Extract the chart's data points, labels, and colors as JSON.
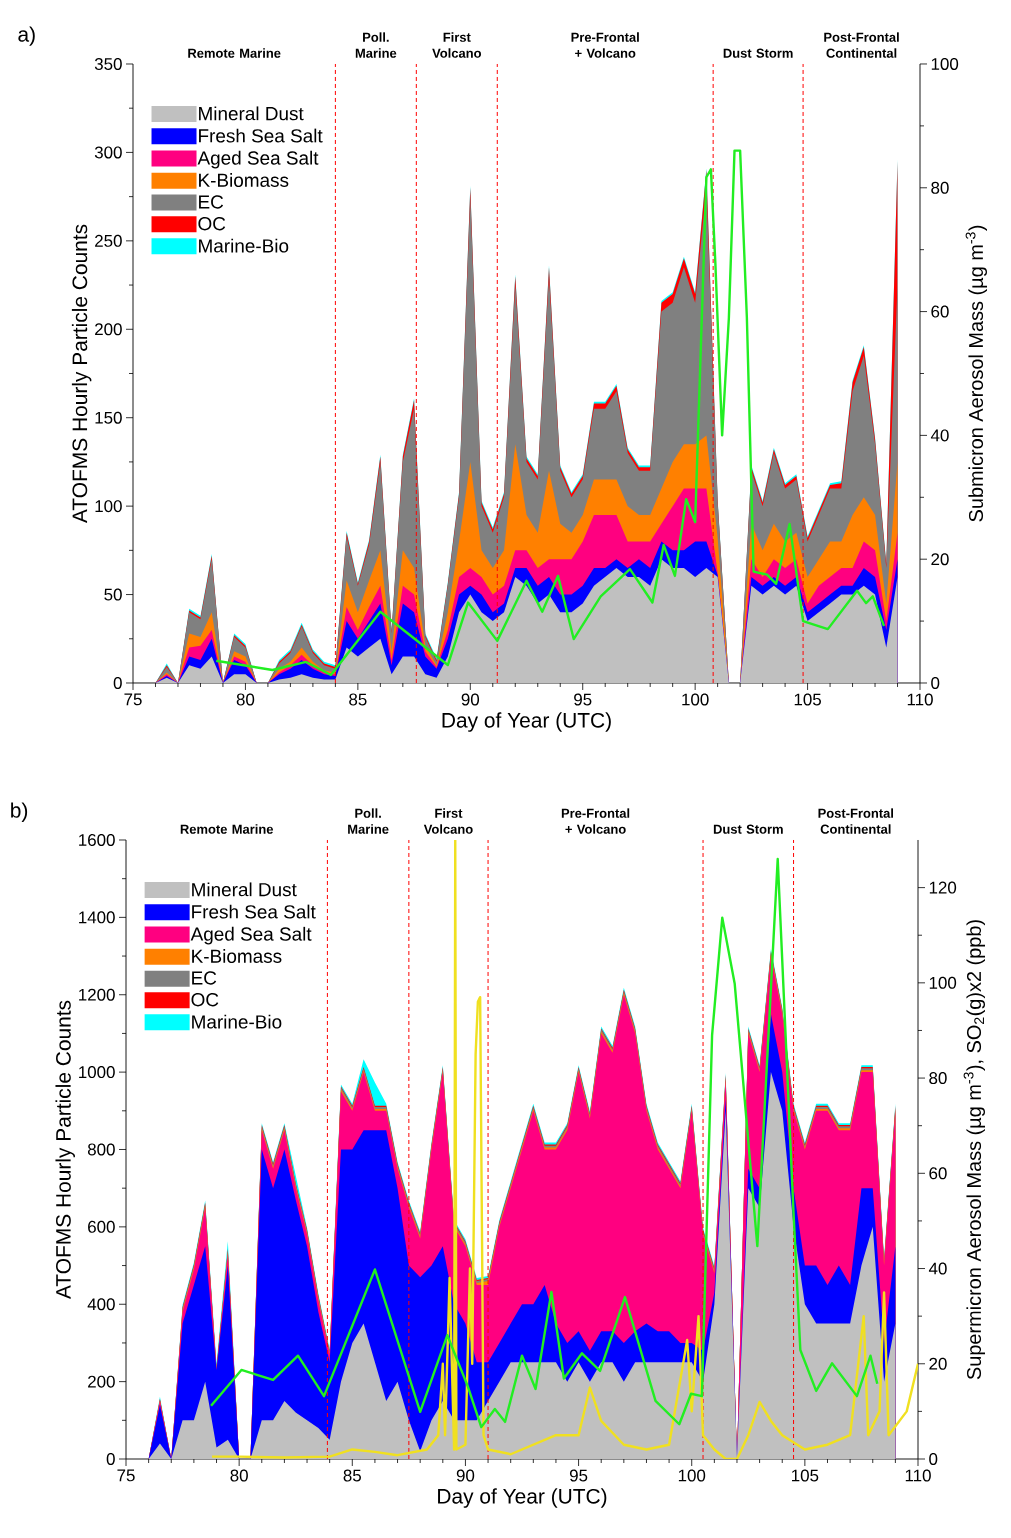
{
  "chart_data": [
    {
      "type": "area",
      "stacked": true,
      "legend": "top left",
      "xlabel": "Day of Year (UTC)",
      "ylabel": "ATOFMS Hourly Particle Counts",
      "y2label": "Submicron Aerosol Mass (µg m$^{-3}$)",
      "xlim": [
        75,
        110
      ],
      "xticks": [
        75,
        80,
        85,
        90,
        95,
        100,
        105,
        110
      ],
      "ylim": [
        0,
        350
      ],
      "yticks": [
        0,
        50,
        100,
        150,
        200,
        250,
        300,
        350
      ],
      "y2lim": [
        0,
        100
      ],
      "y2ticks": [
        0,
        20,
        40,
        60,
        80,
        100
      ],
      "annotations": [
        "a)",
        "Remote Marine",
        "Poll. Marine",
        "First Volcano",
        "Pre-Frontal + Volcano",
        "Dust Storm",
        "Post-Frontal Continental"
      ],
      "ref_lines": [
        {
          "axis": "x",
          "value": 84.0,
          "color": "#ff0000",
          "line_style": "dashed"
        },
        {
          "axis": "x",
          "value": 87.6,
          "color": "#ff0000",
          "line_style": "dashed"
        },
        {
          "axis": "x",
          "value": 91.2,
          "color": "#ff0000",
          "line_style": "dashed"
        },
        {
          "axis": "x",
          "value": 100.8,
          "color": "#ff0000",
          "line_style": "dashed"
        },
        {
          "axis": "x",
          "value": 104.8,
          "color": "#ff0000",
          "line_style": "dashed"
        }
      ],
      "x": [
        76,
        76.5,
        77,
        77.5,
        78,
        78.5,
        79,
        79.5,
        80,
        80.5,
        81,
        81.5,
        82,
        82.5,
        83,
        83.5,
        84,
        84.5,
        85,
        85.5,
        86,
        86.5,
        87,
        87.5,
        88,
        88.5,
        89,
        89.5,
        90,
        90.5,
        91,
        91.5,
        92,
        92.5,
        93,
        93.5,
        94,
        94.5,
        95,
        95.5,
        96,
        96.5,
        97,
        97.5,
        98,
        98.5,
        99,
        99.5,
        100,
        100.5,
        101,
        101.5,
        102,
        102.5,
        103,
        103.5,
        104,
        104.5,
        105,
        105.5,
        106,
        106.5,
        107,
        107.5,
        108,
        108.5,
        109
      ],
      "series": [
        {
          "name": "Mineral Dust",
          "color": "#c0c0c0",
          "values": [
            0,
            3,
            0,
            10,
            8,
            15,
            0,
            5,
            5,
            0,
            0,
            2,
            3,
            5,
            3,
            2,
            2,
            20,
            15,
            20,
            25,
            5,
            15,
            15,
            5,
            3,
            15,
            40,
            50,
            40,
            35,
            40,
            60,
            55,
            45,
            50,
            40,
            40,
            45,
            55,
            60,
            65,
            60,
            60,
            55,
            70,
            65,
            65,
            60,
            65,
            60,
            0,
            0,
            55,
            50,
            55,
            50,
            55,
            35,
            40,
            45,
            50,
            50,
            55,
            50,
            20,
            60
          ]
        },
        {
          "name": "Fresh Sea Salt",
          "color": "#0000ff",
          "values": [
            0,
            1,
            0,
            5,
            5,
            10,
            0,
            8,
            5,
            0,
            0,
            3,
            5,
            8,
            5,
            3,
            2,
            15,
            10,
            15,
            20,
            5,
            30,
            25,
            10,
            5,
            10,
            10,
            5,
            10,
            5,
            5,
            5,
            10,
            10,
            10,
            10,
            10,
            10,
            10,
            5,
            5,
            5,
            10,
            10,
            10,
            10,
            10,
            20,
            15,
            1,
            0,
            0,
            5,
            5,
            5,
            5,
            5,
            5,
            5,
            5,
            5,
            5,
            10,
            10,
            10,
            10
          ]
        },
        {
          "name": "Aged Sea Salt",
          "color": "#ff0080",
          "values": [
            0,
            1,
            0,
            5,
            8,
            5,
            0,
            2,
            2,
            0,
            0,
            1,
            2,
            3,
            2,
            1,
            1,
            8,
            5,
            8,
            10,
            3,
            10,
            10,
            3,
            1,
            5,
            10,
            10,
            10,
            10,
            10,
            10,
            10,
            10,
            10,
            20,
            20,
            25,
            30,
            30,
            25,
            15,
            10,
            15,
            10,
            25,
            35,
            30,
            30,
            1,
            0,
            0,
            10,
            5,
            10,
            10,
            10,
            5,
            10,
            10,
            10,
            10,
            15,
            15,
            5,
            15
          ]
        },
        {
          "name": "K-Biomass",
          "color": "#ff8000",
          "values": [
            0,
            1,
            0,
            8,
            5,
            10,
            0,
            3,
            3,
            0,
            0,
            2,
            2,
            4,
            2,
            1,
            1,
            15,
            10,
            15,
            20,
            5,
            20,
            15,
            3,
            1,
            10,
            20,
            60,
            15,
            15,
            20,
            60,
            20,
            20,
            50,
            20,
            15,
            15,
            20,
            20,
            20,
            20,
            15,
            15,
            20,
            25,
            25,
            25,
            30,
            20,
            0,
            0,
            20,
            15,
            20,
            15,
            15,
            15,
            15,
            20,
            15,
            30,
            25,
            20,
            10,
            40
          ]
        },
        {
          "name": "EC",
          "color": "#808080",
          "values": [
            0,
            3,
            0,
            12,
            10,
            30,
            0,
            8,
            5,
            0,
            0,
            3,
            5,
            12,
            5,
            3,
            2,
            25,
            15,
            20,
            50,
            10,
            50,
            90,
            5,
            2,
            15,
            25,
            150,
            25,
            20,
            30,
            90,
            30,
            30,
            110,
            30,
            20,
            20,
            40,
            40,
            50,
            30,
            25,
            25,
            100,
            90,
            100,
            80,
            140,
            20,
            0,
            0,
            30,
            25,
            40,
            30,
            30,
            20,
            25,
            30,
            30,
            70,
            80,
            40,
            20,
            100
          ]
        },
        {
          "name": "OC",
          "color": "#ff0000",
          "values": [
            0,
            1,
            0,
            1,
            1,
            2,
            0,
            1,
            1,
            0,
            0,
            1,
            1,
            1,
            1,
            1,
            1,
            2,
            1,
            2,
            3,
            1,
            3,
            5,
            1,
            1,
            1,
            2,
            5,
            2,
            2,
            2,
            5,
            2,
            2,
            5,
            2,
            2,
            2,
            3,
            3,
            3,
            2,
            2,
            2,
            5,
            5,
            5,
            5,
            10,
            1,
            0,
            0,
            2,
            2,
            2,
            2,
            2,
            2,
            2,
            2,
            3,
            5,
            5,
            3,
            2,
            70
          ]
        },
        {
          "name": "Marine-Bio",
          "color": "#00ffff",
          "values": [
            0,
            1,
            0,
            1,
            1,
            1,
            0,
            1,
            1,
            0,
            0,
            1,
            1,
            1,
            1,
            1,
            1,
            1,
            1,
            1,
            1,
            1,
            1,
            1,
            1,
            1,
            1,
            1,
            1,
            1,
            1,
            1,
            1,
            1,
            1,
            1,
            1,
            1,
            1,
            1,
            1,
            1,
            1,
            1,
            1,
            1,
            1,
            1,
            1,
            1,
            1,
            0,
            0,
            1,
            1,
            1,
            1,
            1,
            1,
            1,
            1,
            1,
            1,
            1,
            1,
            1,
            1
          ]
        },
        {
          "type": "line",
          "axis": "y2",
          "color": "#22ee22",
          "x": [
            78.7,
            81.2,
            82.7,
            83.8,
            86.0,
            89.0,
            89.9,
            91.2,
            92.5,
            93.2,
            93.9,
            94.6,
            95.8,
            97.1,
            98.1,
            98.6,
            99.1,
            99.6,
            100.0,
            100.5,
            100.7,
            100.9,
            101.2,
            101.5,
            101.75,
            102.0,
            102.3,
            102.6,
            103.2,
            103.6,
            104.2,
            104.8,
            105.9,
            107.2,
            107.6,
            107.9,
            108.4
          ],
          "values": [
            3.6,
            2.1,
            3.4,
            1.3,
            11.5,
            2.9,
            13,
            6.8,
            16.5,
            11.5,
            17.3,
            7.1,
            14,
            18.4,
            13,
            22.3,
            17.3,
            29.7,
            26,
            81.7,
            83,
            67.7,
            40,
            59,
            86,
            86,
            59,
            18,
            17.5,
            16,
            25.7,
            10,
            8.7,
            14.9,
            12.9,
            14,
            9.2
          ]
        }
      ]
    },
    {
      "type": "area",
      "stacked": true,
      "legend": "top left",
      "xlabel": "Day of Year (UTC)",
      "ylabel": "ATOFMS Hourly Particle Counts",
      "y2label": "Supermicron Aerosol Mass (µg m$^{-3}$), SO$_{2}$(g)x2 (ppb)",
      "xlim": [
        75,
        110
      ],
      "xticks": [
        75,
        80,
        85,
        90,
        95,
        100,
        105,
        110
      ],
      "ylim": [
        0,
        1600
      ],
      "yticks": [
        0,
        200,
        400,
        600,
        800,
        1000,
        1200,
        1400,
        1600
      ],
      "y2lim": [
        0,
        130
      ],
      "y2ticks": [
        0,
        20,
        40,
        60,
        80,
        100,
        120
      ],
      "annotations": [
        "b)",
        "Remote Marine",
        "Poll. Marine",
        "First Volcano",
        "Pre-Frontal + Volcano",
        "Dust Storm",
        "Post-Frontal Continental"
      ],
      "ref_lines": [
        {
          "axis": "x",
          "value": 83.9,
          "color": "#ff0000",
          "line_style": "dashed"
        },
        {
          "axis": "x",
          "value": 87.5,
          "color": "#ff0000",
          "line_style": "dashed"
        },
        {
          "axis": "x",
          "value": 91.0,
          "color": "#ff0000",
          "line_style": "dashed"
        },
        {
          "axis": "x",
          "value": 100.5,
          "color": "#ff0000",
          "line_style": "dashed"
        },
        {
          "axis": "x",
          "value": 104.5,
          "color": "#ff0000",
          "line_style": "dashed"
        }
      ],
      "x": [
        76,
        76.5,
        77,
        77.5,
        78,
        78.5,
        79,
        79.5,
        80,
        80.5,
        81,
        81.5,
        82,
        82.5,
        83,
        83.5,
        84,
        84.5,
        85,
        85.5,
        86,
        86.5,
        87,
        87.5,
        88,
        88.5,
        89,
        89.5,
        90,
        90.5,
        91,
        91.5,
        92,
        92.5,
        93,
        93.5,
        94,
        94.5,
        95,
        95.5,
        96,
        96.5,
        97,
        97.5,
        98,
        98.5,
        99,
        99.5,
        100,
        100.5,
        101,
        101.5,
        102,
        102.5,
        103,
        103.5,
        104,
        104.5,
        105,
        105.5,
        106,
        106.5,
        107,
        107.5,
        108,
        108.5,
        109
      ],
      "series": [
        {
          "name": "Mineral Dust",
          "color": "#c0c0c0",
          "values": [
            0,
            40,
            0,
            100,
            100,
            200,
            30,
            50,
            0,
            0,
            100,
            100,
            150,
            120,
            100,
            80,
            50,
            200,
            300,
            350,
            250,
            150,
            200,
            100,
            20,
            100,
            150,
            100,
            100,
            100,
            150,
            200,
            250,
            250,
            250,
            250,
            250,
            200,
            250,
            200,
            250,
            250,
            200,
            250,
            250,
            250,
            250,
            250,
            250,
            200,
            400,
            900,
            0,
            700,
            650,
            1000,
            900,
            600,
            400,
            350,
            350,
            350,
            350,
            500,
            600,
            200,
            350
          ]
        },
        {
          "name": "Fresh Sea Salt",
          "color": "#0000ff",
          "values": [
            0,
            100,
            0,
            250,
            350,
            350,
            200,
            450,
            0,
            0,
            700,
            600,
            650,
            550,
            450,
            300,
            200,
            600,
            500,
            500,
            600,
            700,
            500,
            400,
            450,
            400,
            400,
            300,
            250,
            150,
            100,
            100,
            100,
            150,
            150,
            200,
            100,
            100,
            80,
            80,
            80,
            80,
            100,
            80,
            100,
            80,
            80,
            50,
            50,
            80,
            30,
            30,
            0,
            50,
            50,
            150,
            100,
            100,
            100,
            150,
            100,
            150,
            100,
            200,
            100,
            100,
            200
          ]
        },
        {
          "name": "Aged Sea Salt",
          "color": "#ff0080",
          "values": [
            0,
            10,
            0,
            30,
            40,
            100,
            0,
            30,
            0,
            0,
            50,
            50,
            50,
            30,
            30,
            30,
            20,
            150,
            100,
            150,
            50,
            50,
            50,
            150,
            100,
            300,
            450,
            200,
            200,
            200,
            200,
            300,
            350,
            400,
            500,
            350,
            450,
            550,
            670,
            600,
            770,
            720,
            900,
            770,
            550,
            470,
            420,
            400,
            600,
            300,
            50,
            50,
            0,
            350,
            300,
            150,
            150,
            200,
            300,
            400,
            450,
            350,
            400,
            300,
            300,
            200,
            350
          ]
        },
        {
          "name": "K-Biomass",
          "color": "#ff8000",
          "values": [
            0,
            2,
            0,
            5,
            5,
            5,
            2,
            5,
            0,
            0,
            5,
            5,
            5,
            5,
            5,
            5,
            3,
            5,
            5,
            5,
            5,
            5,
            5,
            5,
            5,
            5,
            5,
            5,
            5,
            5,
            10,
            5,
            5,
            5,
            5,
            5,
            5,
            5,
            5,
            5,
            5,
            5,
            5,
            5,
            5,
            5,
            5,
            5,
            5,
            5,
            5,
            5,
            0,
            5,
            5,
            5,
            5,
            5,
            5,
            5,
            5,
            5,
            5,
            5,
            5,
            5,
            5
          ]
        },
        {
          "name": "EC",
          "color": "#808080",
          "values": [
            0,
            2,
            0,
            5,
            5,
            5,
            2,
            5,
            0,
            0,
            5,
            5,
            5,
            5,
            5,
            5,
            3,
            5,
            5,
            5,
            5,
            5,
            5,
            5,
            5,
            5,
            5,
            5,
            5,
            5,
            5,
            5,
            5,
            5,
            5,
            5,
            5,
            5,
            5,
            5,
            5,
            5,
            5,
            5,
            5,
            5,
            5,
            5,
            5,
            5,
            5,
            5,
            0,
            5,
            5,
            5,
            5,
            5,
            5,
            5,
            5,
            5,
            5,
            5,
            5,
            5,
            5
          ]
        },
        {
          "name": "OC",
          "color": "#ff0000",
          "values": [
            0,
            2,
            0,
            3,
            3,
            3,
            2,
            3,
            0,
            0,
            3,
            3,
            3,
            3,
            3,
            3,
            2,
            3,
            3,
            3,
            3,
            3,
            3,
            3,
            3,
            3,
            3,
            3,
            3,
            3,
            3,
            3,
            3,
            3,
            3,
            3,
            3,
            3,
            3,
            3,
            3,
            3,
            3,
            3,
            3,
            3,
            3,
            3,
            3,
            3,
            3,
            3,
            0,
            3,
            3,
            3,
            3,
            3,
            3,
            3,
            3,
            3,
            3,
            3,
            3,
            3,
            3
          ]
        },
        {
          "name": "Marine-Bio",
          "color": "#00ffff",
          "values": [
            0,
            5,
            0,
            5,
            5,
            5,
            10,
            20,
            0,
            0,
            5,
            5,
            5,
            20,
            5,
            5,
            5,
            5,
            5,
            20,
            60,
            5,
            5,
            5,
            5,
            5,
            5,
            5,
            5,
            5,
            5,
            5,
            5,
            5,
            5,
            5,
            5,
            5,
            5,
            5,
            5,
            5,
            5,
            5,
            5,
            5,
            5,
            5,
            5,
            5,
            5,
            5,
            0,
            5,
            5,
            5,
            5,
            5,
            5,
            5,
            5,
            5,
            5,
            5,
            5,
            5,
            5
          ]
        },
        {
          "type": "line",
          "axis": "y2",
          "color": "#f0e020",
          "x": [
            78.8,
            80,
            82,
            84,
            85,
            86,
            87,
            88.3,
            88.8,
            89.0,
            89.1,
            89.3,
            89.5,
            89.55,
            89.6,
            90.0,
            90.2,
            90.3,
            90.45,
            90.55,
            90.65,
            90.8,
            91.0,
            92,
            93,
            94,
            95,
            95.5,
            96,
            97,
            98,
            99,
            99.8,
            100,
            100.3,
            100.5,
            101,
            101.5,
            102,
            102.5,
            103,
            103.5,
            104,
            105,
            106,
            107,
            107.6,
            107.8,
            108.3,
            108.5,
            108.7,
            109.5,
            110
          ],
          "values": [
            0.5,
            0.5,
            0.3,
            0.5,
            2,
            1.5,
            0.8,
            2,
            5,
            20,
            5,
            38,
            2,
            130,
            2,
            3,
            40,
            20,
            85,
            96,
            97,
            5,
            2,
            1,
            3,
            5,
            5,
            15,
            8,
            3,
            2,
            3,
            25,
            10,
            30,
            5,
            2,
            0,
            0,
            5,
            12,
            8,
            5,
            2,
            3,
            5,
            30,
            5,
            10,
            35,
            5,
            10,
            20
          ]
        },
        {
          "type": "line",
          "axis": "y2",
          "color": "#22ee22",
          "x": [
            78.76,
            80.1,
            81.5,
            82.6,
            83.75,
            86.0,
            88.0,
            89.2,
            90.1,
            90.7,
            91.3,
            91.75,
            92.5,
            93.1,
            93.8,
            94.35,
            95.15,
            95.95,
            97.05,
            98.4,
            99.45,
            99.97,
            100.45,
            100.9,
            101.35,
            101.9,
            102.9,
            103.8,
            104.5,
            104.8,
            105.5,
            106.2,
            107.3,
            107.9,
            108.2
          ],
          "values": [
            11.2,
            18.7,
            16.6,
            21.7,
            13.2,
            39.8,
            9.9,
            26,
            15.3,
            6.7,
            10.5,
            7.8,
            21.7,
            14.7,
            35.1,
            16.9,
            22.2,
            18.5,
            34.0,
            12.2,
            7.3,
            13.7,
            13.2,
            89,
            113.7,
            99.8,
            44.7,
            126,
            51.6,
            22.9,
            14.3,
            20.1,
            13.2,
            21.7,
            15.8
          ]
        }
      ]
    }
  ]
}
